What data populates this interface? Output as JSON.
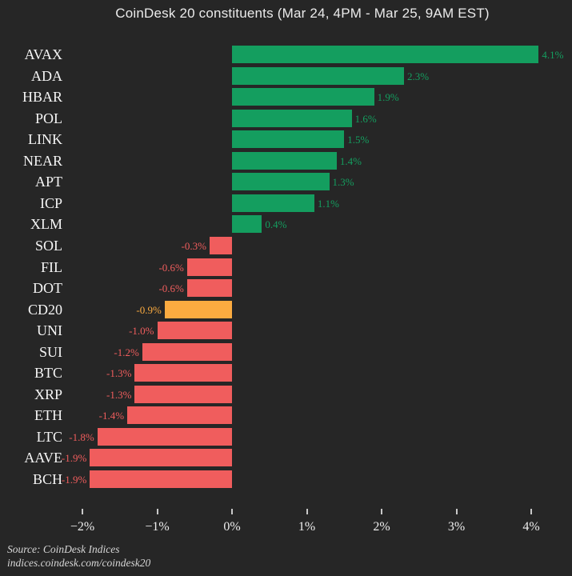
{
  "chart_data": {
    "type": "bar",
    "orientation": "horizontal",
    "title": "CoinDesk 20 constituents (Mar 24, 4PM - Mar 25, 9AM EST)",
    "categories": [
      "AVAX",
      "ADA",
      "HBAR",
      "POL",
      "LINK",
      "NEAR",
      "APT",
      "ICP",
      "XLM",
      "SOL",
      "FIL",
      "DOT",
      "CD20",
      "UNI",
      "SUI",
      "BTC",
      "XRP",
      "ETH",
      "LTC",
      "AAVE",
      "BCH"
    ],
    "values": [
      4.1,
      2.3,
      1.9,
      1.6,
      1.5,
      1.4,
      1.3,
      1.1,
      0.4,
      -0.3,
      -0.6,
      -0.6,
      -0.9,
      -1.0,
      -1.2,
      -1.3,
      -1.3,
      -1.4,
      -1.8,
      -1.9,
      -1.9
    ],
    "value_labels": [
      "4.1%",
      "2.3%",
      "1.9%",
      "1.6%",
      "1.5%",
      "1.4%",
      "1.3%",
      "1.1%",
      "0.4%",
      "-0.3%",
      "-0.6%",
      "-0.6%",
      "-0.9%",
      "-1.0%",
      "-1.2%",
      "-1.3%",
      "-1.3%",
      "-1.4%",
      "-1.8%",
      "-1.9%",
      "-1.9%"
    ],
    "highlight_category": "CD20",
    "x_tick_values": [
      -2,
      -1,
      0,
      1,
      2,
      3,
      4
    ],
    "x_tick_labels": [
      "−2%",
      "−1%",
      "0%",
      "1%",
      "2%",
      "3%",
      "4%"
    ],
    "xlim": [
      -2.1,
      4.55
    ],
    "grid": false,
    "legend": "none",
    "colors": {
      "positive": "#149e5f",
      "negative": "#f05d5d",
      "highlight": "#fbab40",
      "background": "#262626",
      "ticker_text": "#f5f5f5",
      "axis_text": "#ededed"
    }
  },
  "footer": {
    "source": "Source: CoinDesk Indices",
    "url": "indices.coindesk.com/coindesk20"
  }
}
